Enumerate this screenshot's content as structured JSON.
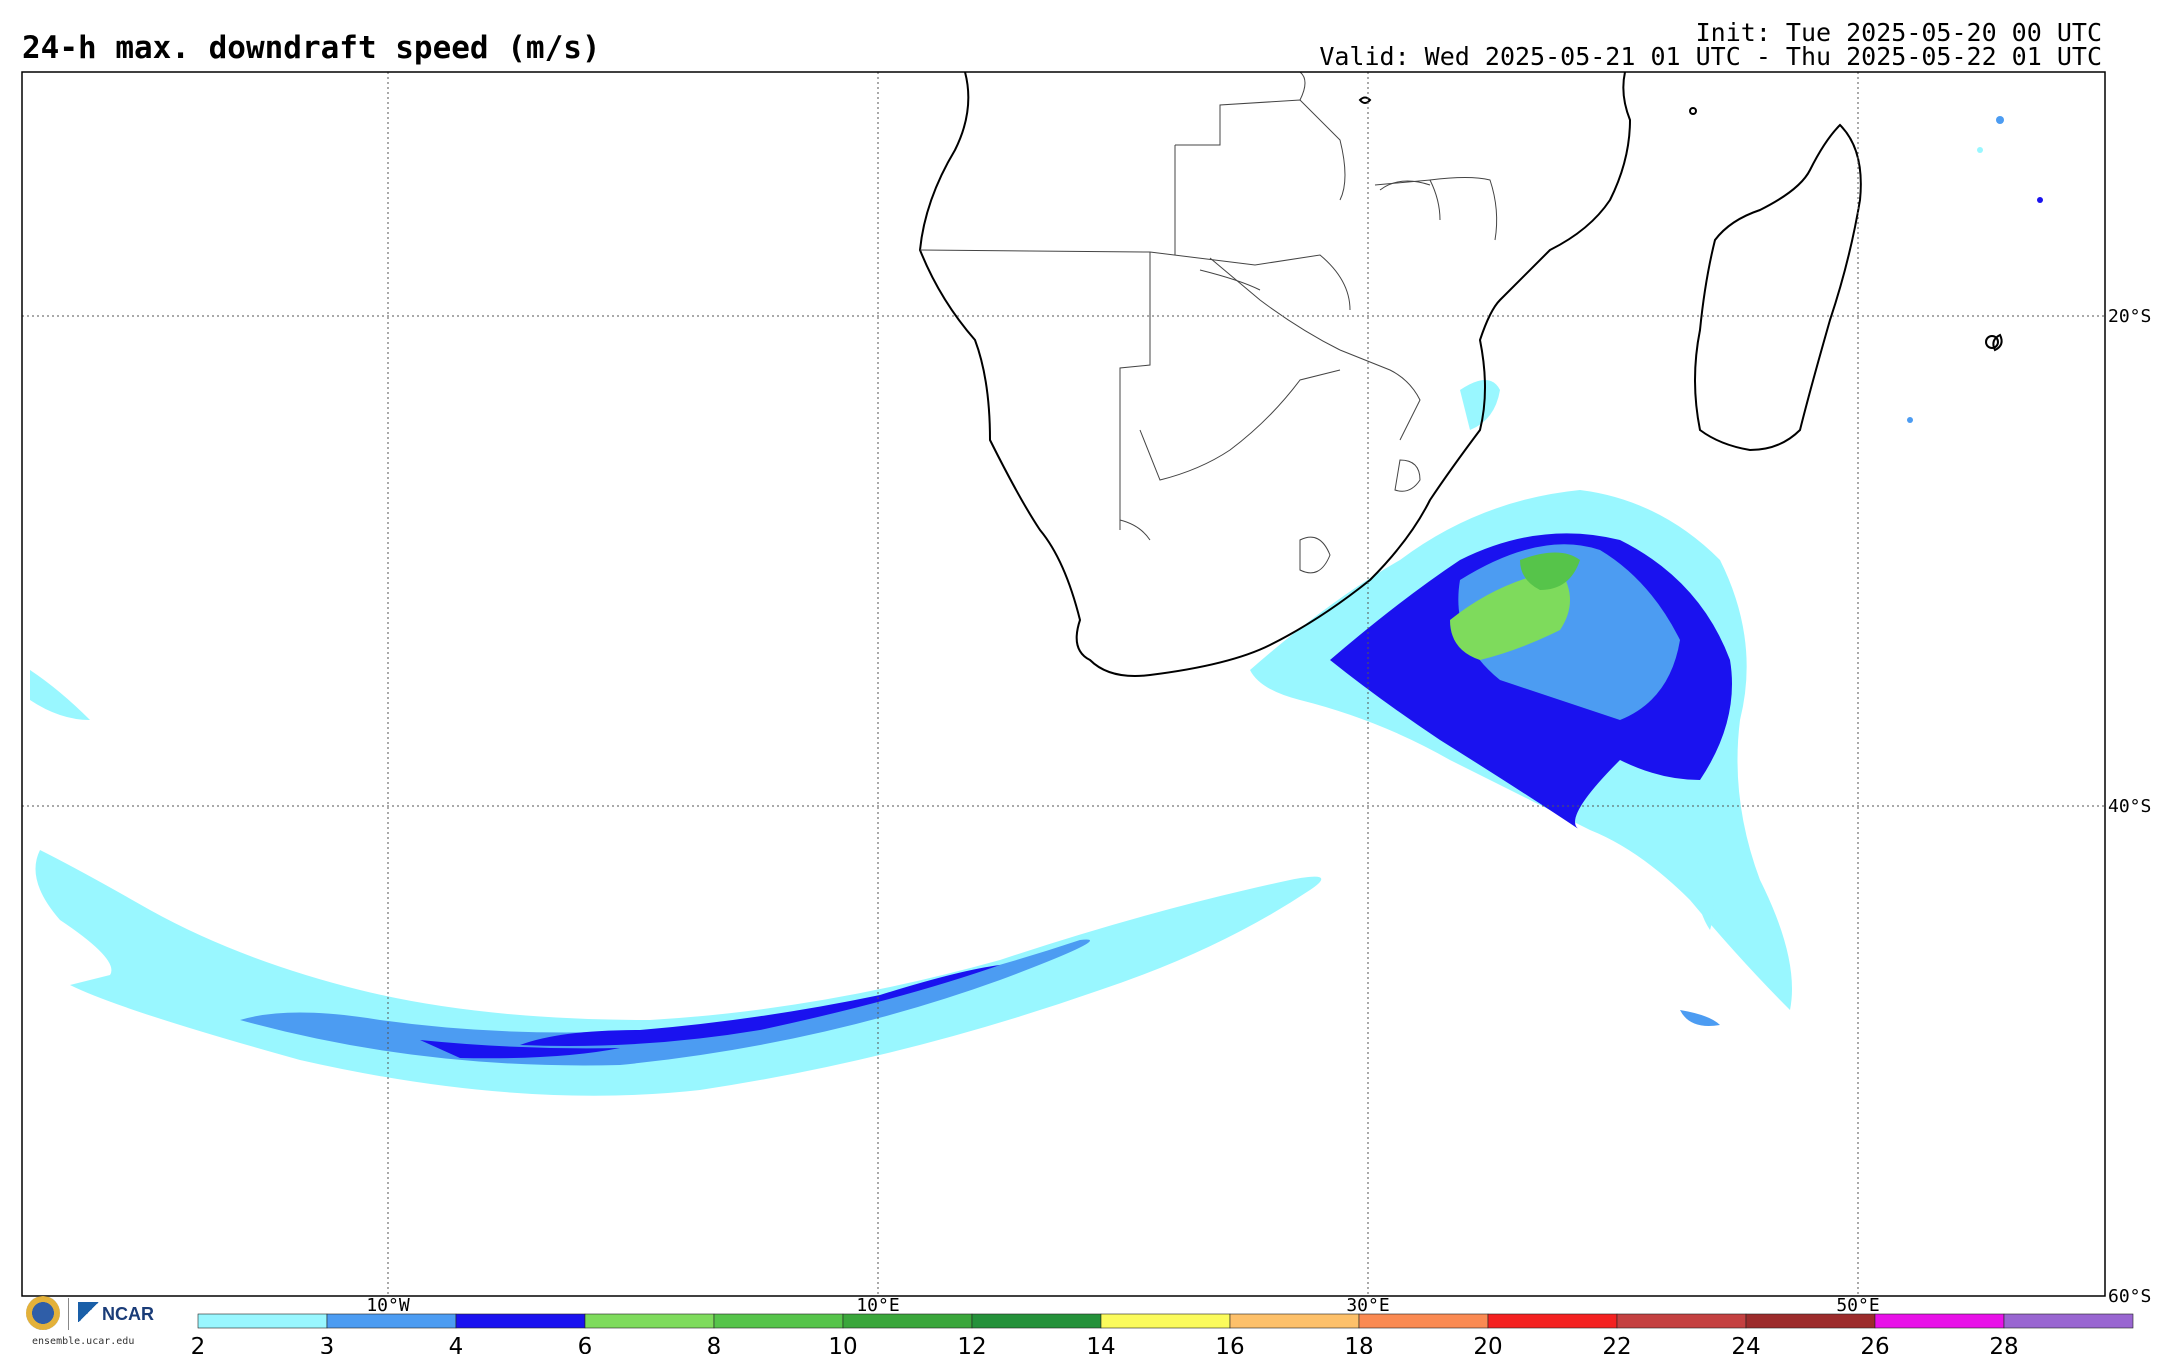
{
  "header": {
    "title": "24-h max. downdraft speed (m/s)",
    "init": "Init: Tue 2025-05-20 00 UTC",
    "valid": "Valid: Wed 2025-05-21 01 UTC - Thu 2025-05-22 01 UTC"
  },
  "map": {
    "lon_range": [
      -25,
      60
    ],
    "lat_range": [
      -60,
      -10
    ],
    "lon_ticks": [
      {
        "value": -10,
        "label": "10°W"
      },
      {
        "value": 10,
        "label": "10°E"
      },
      {
        "value": 30,
        "label": "30°E"
      },
      {
        "value": 50,
        "label": "50°E"
      }
    ],
    "lat_ticks": [
      {
        "value": -20,
        "label": "20°S"
      },
      {
        "value": -40,
        "label": "40°S"
      },
      {
        "value": -60,
        "label": "60°S"
      }
    ]
  },
  "colorbar": {
    "labels": [
      "2",
      "3",
      "4",
      "6",
      "8",
      "10",
      "12",
      "14",
      "16",
      "18",
      "20",
      "22",
      "24",
      "26",
      "28"
    ],
    "colors": [
      "#99f7ff",
      "#4c9cf2",
      "#1a12ef",
      "#7edb5c",
      "#56c44a",
      "#3aa63b",
      "#24913a",
      "#fbfb5c",
      "#fdc06a",
      "#fa8a52",
      "#f42120",
      "#c44040",
      "#9c2b2b",
      "#e811e8",
      "#9966d1"
    ]
  },
  "logo": {
    "org": "NCAR",
    "url": "ensemble.ucar.edu",
    "seal": "nsf-seal-icon"
  }
}
